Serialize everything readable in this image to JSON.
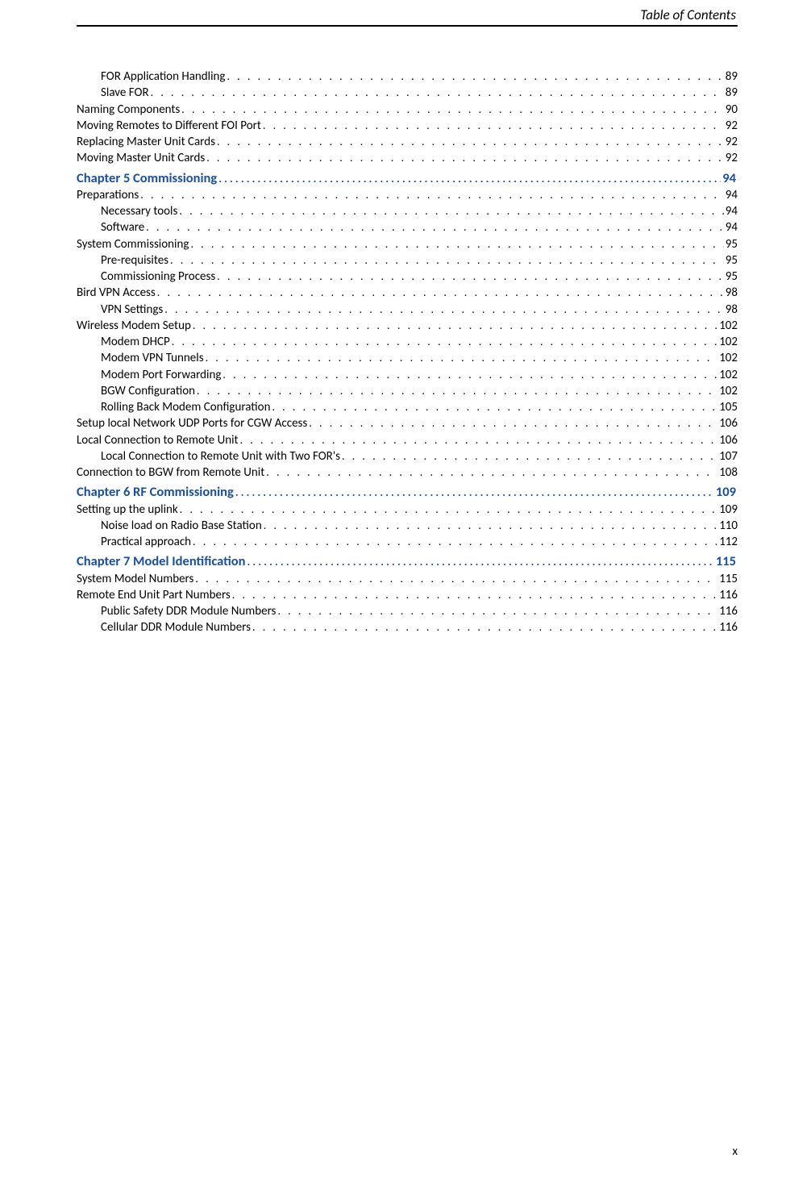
{
  "header": {
    "title": "Table of Contents"
  },
  "footer": {
    "page_number": "x"
  },
  "colors": {
    "chapter": "#1a4fa0",
    "text": "#000000",
    "background": "#ffffff"
  },
  "toc": [
    {
      "level": 2,
      "label": "FOR Application Handling ",
      "page": "89"
    },
    {
      "level": 2,
      "label": "Slave FOR",
      "page": "89"
    },
    {
      "level": 1,
      "label": "Naming Components ",
      "page": "90"
    },
    {
      "level": 1,
      "label": "Moving Remotes to Different FOI Port ",
      "page": "92"
    },
    {
      "level": 1,
      "label": "Replacing Master Unit Cards ",
      "page": "92"
    },
    {
      "level": 1,
      "label": "Moving Master Unit Cards",
      "page": "92"
    },
    {
      "type": "chapter",
      "label": "Chapter 5  Commissioning ",
      "page": "94"
    },
    {
      "level": 1,
      "label": "Preparations ",
      "page": "94"
    },
    {
      "level": 2,
      "label": "Necessary tools",
      "page": "94"
    },
    {
      "level": 2,
      "label": "Software ",
      "page": "94"
    },
    {
      "level": 1,
      "label": "System Commissioning ",
      "page": "95"
    },
    {
      "level": 2,
      "label": "Pre-requisites ",
      "page": "95"
    },
    {
      "level": 2,
      "label": "Commissioning Process ",
      "page": "95"
    },
    {
      "level": 1,
      "label": "Bird VPN Access ",
      "page": "98"
    },
    {
      "level": 2,
      "label": "VPN Settings ",
      "page": "98"
    },
    {
      "level": 1,
      "label": "Wireless Modem Setup ",
      "page": "102"
    },
    {
      "level": 2,
      "label": "Modem DHCP ",
      "page": "102"
    },
    {
      "level": 2,
      "label": "Modem VPN Tunnels ",
      "page": "102"
    },
    {
      "level": 2,
      "label": "Modem Port Forwarding ",
      "page": "102"
    },
    {
      "level": 2,
      "label": "BGW Configuration",
      "page": "102"
    },
    {
      "level": 2,
      "label": "Rolling Back Modem Configuration ",
      "page": "105"
    },
    {
      "level": 1,
      "label": "Setup local Network UDP Ports for CGW Access ",
      "page": "106"
    },
    {
      "level": 1,
      "label": "Local Connection to Remote Unit ",
      "page": "106"
    },
    {
      "level": 2,
      "label": "Local Connection to Remote Unit with Two FOR's ",
      "page": "107"
    },
    {
      "level": 1,
      "label": "Connection to BGW from Remote Unit ",
      "page": "108"
    },
    {
      "type": "chapter",
      "label": "Chapter 6  RF Commissioning",
      "page": "109"
    },
    {
      "level": 1,
      "label": "Setting up the uplink ",
      "page": "109"
    },
    {
      "level": 2,
      "label": "Noise load on Radio Base Station ",
      "page": "110"
    },
    {
      "level": 2,
      "label": "Practical approach ",
      "page": "112"
    },
    {
      "type": "chapter",
      "label": "Chapter 7  Model Identification ",
      "page": "115"
    },
    {
      "level": 1,
      "label": "System Model Numbers",
      "page": "115"
    },
    {
      "level": 1,
      "label": "Remote End Unit Part Numbers ",
      "page": "116"
    },
    {
      "level": 2,
      "label": "Public Safety DDR Module Numbers ",
      "page": "116"
    },
    {
      "level": 2,
      "label": "Cellular DDR Module Numbers ",
      "page": "116"
    }
  ]
}
